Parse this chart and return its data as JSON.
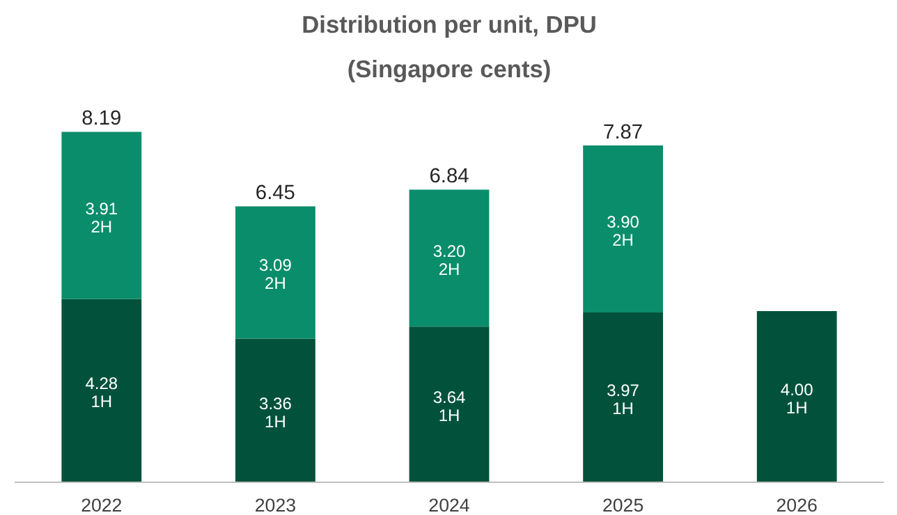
{
  "chart_data": {
    "type": "bar",
    "title": "Distribution per unit, DPU",
    "subtitle": "(Singapore cents)",
    "categories": [
      "2022",
      "2023",
      "2024",
      "2025",
      "2026"
    ],
    "stacked": true,
    "grid": false,
    "legend": false,
    "tick_labels": "x",
    "series": [
      {
        "name": "1H",
        "color": "#02523b",
        "values": [
          4.28,
          3.36,
          3.64,
          3.97,
          4.0
        ],
        "value_labels": [
          "4.28",
          "3.36",
          "3.64",
          "3.97",
          "4.00"
        ]
      },
      {
        "name": "2H",
        "color": "#0a8d6b",
        "values": [
          3.91,
          3.09,
          3.2,
          3.9,
          null
        ],
        "value_labels": [
          "3.91",
          "3.09",
          "3.20",
          "3.90",
          null
        ]
      }
    ],
    "totals": [
      "8.19",
      "6.45",
      "6.84",
      "7.87",
      null
    ]
  }
}
